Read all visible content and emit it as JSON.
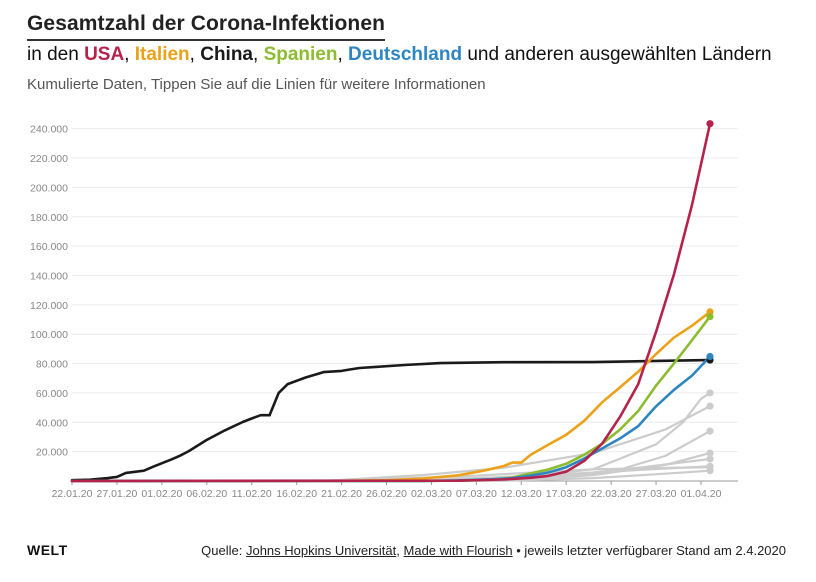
{
  "title": "Gesamtzahl der Corona-Infektionen",
  "subtitle": {
    "prefix": "in den",
    "countries": [
      {
        "name": "USA",
        "color": "#b5234c"
      },
      {
        "name": "Italien",
        "color": "#eba21a"
      },
      {
        "name": "China",
        "color": "#1a1a1a"
      },
      {
        "name": "Spanien",
        "color": "#8cbd30"
      },
      {
        "name": "Deutschland",
        "color": "#2e86c1"
      }
    ],
    "sep": ",",
    "suffix": "und anderen ausgewählten Ländern"
  },
  "description": "Kumulierte Daten, Tippen Sie auf die Linien für weitere Informationen",
  "footer": {
    "logo": "WELT",
    "source_prefix": "Quelle:",
    "source_link_1": "Johns Hopkins Universität",
    "source_sep": ",",
    "source_link_2": "Made with Flourish",
    "source_suffix": "• jeweils letzter verfügbarer Stand am 2.4.2020"
  },
  "chart_data": {
    "type": "line",
    "x_ticks": [
      "22.01.20",
      "27.01.20",
      "01.02.20",
      "06.02.20",
      "11.02.20",
      "16.02.20",
      "21.02.20",
      "26.02.20",
      "02.03.20",
      "07.03.20",
      "12.03.20",
      "17.03.20",
      "22.03.20",
      "27.03.20",
      "01.04.20"
    ],
    "y_ticks": [
      "20.000",
      "40.000",
      "60.000",
      "80.000",
      "100.000",
      "120.000",
      "140.000",
      "160.000",
      "180.000",
      "200.000",
      "220.000",
      "240.000"
    ],
    "ylim": [
      0,
      250000
    ],
    "xlim": [
      "22.01.20",
      "01.04.20"
    ],
    "grid": true,
    "series": [
      {
        "name": "",
        "color": "#cccccc",
        "points": [
          [
            "22.01.20",
            0
          ],
          [
            "01.03.20",
            200
          ],
          [
            "11.03.20",
            2000
          ],
          [
            "20.03.20",
            8000
          ],
          [
            "27.03.20",
            25000
          ],
          [
            "30.03.20",
            40000
          ],
          [
            "01.04.20",
            56000
          ],
          [
            "02.04.20",
            60000
          ]
        ]
      },
      {
        "name": "",
        "color": "#cccccc",
        "points": [
          [
            "22.01.20",
            0
          ],
          [
            "20.02.20",
            500
          ],
          [
            "01.03.20",
            4000
          ],
          [
            "10.03.20",
            9000
          ],
          [
            "20.03.20",
            19000
          ],
          [
            "28.03.20",
            35000
          ],
          [
            "02.04.20",
            51000
          ]
        ]
      },
      {
        "name": "",
        "color": "#cccccc",
        "points": [
          [
            "22.01.20",
            0
          ],
          [
            "05.03.20",
            200
          ],
          [
            "15.03.20",
            2000
          ],
          [
            "22.03.20",
            6000
          ],
          [
            "28.03.20",
            17000
          ],
          [
            "02.04.20",
            34000
          ]
        ]
      },
      {
        "name": "",
        "color": "#cccccc",
        "points": [
          [
            "22.01.20",
            0
          ],
          [
            "10.03.20",
            300
          ],
          [
            "20.03.20",
            4000
          ],
          [
            "28.03.20",
            11000
          ],
          [
            "02.04.20",
            19000
          ]
        ]
      },
      {
        "name": "",
        "color": "#cccccc",
        "points": [
          [
            "22.01.20",
            0
          ],
          [
            "05.03.20",
            600
          ],
          [
            "15.03.20",
            2500
          ],
          [
            "25.03.20",
            9000
          ],
          [
            "02.04.20",
            15000
          ]
        ]
      },
      {
        "name": "",
        "color": "#cccccc",
        "points": [
          [
            "22.01.20",
            0
          ],
          [
            "01.03.20",
            400
          ],
          [
            "15.03.20",
            4000
          ],
          [
            "28.03.20",
            8500
          ],
          [
            "02.04.20",
            10000
          ]
        ]
      },
      {
        "name": "",
        "color": "#cccccc",
        "points": [
          [
            "22.01.20",
            0
          ],
          [
            "10.03.20",
            200
          ],
          [
            "20.03.20",
            2000
          ],
          [
            "28.03.20",
            5000
          ],
          [
            "02.04.20",
            7000
          ]
        ]
      },
      {
        "name": "",
        "color": "#cccccc",
        "points": [
          [
            "22.01.20",
            0
          ],
          [
            "20.02.20",
            300
          ],
          [
            "05.03.20",
            3000
          ],
          [
            "20.03.20",
            8000
          ],
          [
            "02.04.20",
            9500
          ]
        ]
      },
      {
        "name": "China",
        "color": "#1a1a1a",
        "points": [
          [
            "22.01.20",
            550
          ],
          [
            "24.01.20",
            900
          ],
          [
            "26.01.20",
            2000
          ],
          [
            "27.01.20",
            2800
          ],
          [
            "28.01.20",
            5500
          ],
          [
            "30.01.20",
            7000
          ],
          [
            "31.01.20",
            9700
          ],
          [
            "02.02.20",
            14500
          ],
          [
            "03.02.20",
            17200
          ],
          [
            "04.02.20",
            20400
          ],
          [
            "06.02.20",
            28000
          ],
          [
            "08.02.20",
            34500
          ],
          [
            "10.02.20",
            40200
          ],
          [
            "11.02.20",
            42600
          ],
          [
            "12.02.20",
            44800
          ],
          [
            "13.02.20",
            44800
          ],
          [
            "13.02.20",
            45000
          ],
          [
            "14.02.20",
            60000
          ],
          [
            "15.02.20",
            66000
          ],
          [
            "17.02.20",
            70500
          ],
          [
            "19.02.20",
            74200
          ],
          [
            "21.02.20",
            75000
          ],
          [
            "22.02.20",
            76000
          ],
          [
            "23.02.20",
            77000
          ],
          [
            "25.02.20",
            77800
          ],
          [
            "28.02.20",
            79000
          ],
          [
            "03.03.20",
            80300
          ],
          [
            "10.03.20",
            80900
          ],
          [
            "20.03.20",
            81000
          ],
          [
            "27.03.20",
            81800
          ],
          [
            "01.04.20",
            82300
          ],
          [
            "02.04.20",
            82400
          ]
        ]
      },
      {
        "name": "Italien",
        "color": "#eba21a",
        "points": [
          [
            "22.01.20",
            0
          ],
          [
            "20.02.20",
            0
          ],
          [
            "22.02.20",
            200
          ],
          [
            "26.02.20",
            500
          ],
          [
            "01.03.20",
            1700
          ],
          [
            "05.03.20",
            3900
          ],
          [
            "08.03.20",
            7300
          ],
          [
            "10.03.20",
            10100
          ],
          [
            "11.03.20",
            12500
          ],
          [
            "12.03.20",
            12500
          ],
          [
            "13.03.20",
            17700
          ],
          [
            "15.03.20",
            24700
          ],
          [
            "17.03.20",
            31500
          ],
          [
            "19.03.20",
            41000
          ],
          [
            "21.03.20",
            53600
          ],
          [
            "23.03.20",
            63900
          ],
          [
            "25.03.20",
            74400
          ],
          [
            "27.03.20",
            86500
          ],
          [
            "29.03.20",
            97700
          ],
          [
            "31.03.20",
            105800
          ],
          [
            "02.04.20",
            115200
          ]
        ]
      },
      {
        "name": "Spanien",
        "color": "#8cbd30",
        "points": [
          [
            "22.01.20",
            0
          ],
          [
            "01.03.20",
            0
          ],
          [
            "06.03.20",
            400
          ],
          [
            "09.03.20",
            1200
          ],
          [
            "11.03.20",
            2300
          ],
          [
            "13.03.20",
            5200
          ],
          [
            "15.03.20",
            7800
          ],
          [
            "17.03.20",
            11700
          ],
          [
            "19.03.20",
            17900
          ],
          [
            "21.03.20",
            25400
          ],
          [
            "23.03.20",
            35100
          ],
          [
            "25.03.20",
            47600
          ],
          [
            "27.03.20",
            65000
          ],
          [
            "29.03.20",
            80100
          ],
          [
            "31.03.20",
            95900
          ],
          [
            "02.04.20",
            112000
          ]
        ]
      },
      {
        "name": "Deutschland",
        "color": "#2e86c1",
        "points": [
          [
            "22.01.20",
            0
          ],
          [
            "01.03.20",
            100
          ],
          [
            "05.03.20",
            400
          ],
          [
            "09.03.20",
            1200
          ],
          [
            "11.03.20",
            1900
          ],
          [
            "13.03.20",
            3700
          ],
          [
            "15.03.20",
            5800
          ],
          [
            "17.03.20",
            9400
          ],
          [
            "19.03.20",
            15300
          ],
          [
            "21.03.20",
            22200
          ],
          [
            "23.03.20",
            29000
          ],
          [
            "25.03.20",
            37300
          ],
          [
            "27.03.20",
            50900
          ],
          [
            "29.03.20",
            62100
          ],
          [
            "31.03.20",
            71800
          ],
          [
            "02.04.20",
            84800
          ]
        ]
      },
      {
        "name": "USA",
        "color": "#b5234c",
        "points": [
          [
            "22.01.20",
            0
          ],
          [
            "05.03.20",
            200
          ],
          [
            "10.03.20",
            1000
          ],
          [
            "13.03.20",
            2200
          ],
          [
            "15.03.20",
            3500
          ],
          [
            "17.03.20",
            6400
          ],
          [
            "19.03.20",
            13700
          ],
          [
            "21.03.20",
            25500
          ],
          [
            "23.03.20",
            43800
          ],
          [
            "25.03.20",
            65800
          ],
          [
            "27.03.20",
            101700
          ],
          [
            "29.03.20",
            140900
          ],
          [
            "31.03.20",
            188100
          ],
          [
            "02.04.20",
            243400
          ]
        ]
      }
    ]
  }
}
